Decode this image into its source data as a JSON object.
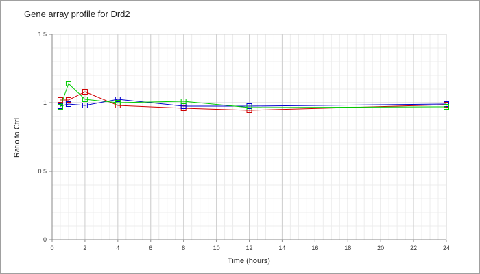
{
  "chart_data": {
    "type": "line",
    "title": "Gene array profile for Drd2",
    "xlabel": "Time (hours)",
    "ylabel": "Ratio to Ctrl",
    "xlim": [
      0,
      24
    ],
    "ylim": [
      0,
      1.5
    ],
    "x_ticks": [
      "0",
      "2",
      "4",
      "6",
      "8",
      "10",
      "12",
      "14",
      "16",
      "18",
      "20",
      "22",
      "24"
    ],
    "y_ticks": [
      "0",
      "0.5",
      "1",
      "1.5"
    ],
    "grid": true,
    "marker": "square",
    "series": [
      {
        "color": "#d00000",
        "points": [
          {
            "x": 0.5,
            "y": 1.02
          },
          {
            "x": 1,
            "y": 1.02
          },
          {
            "x": 2,
            "y": 1.08
          },
          {
            "x": 4,
            "y": 0.98
          },
          {
            "x": 8,
            "y": 0.96
          },
          {
            "x": 12,
            "y": 0.945
          },
          {
            "x": 24,
            "y": 0.985
          }
        ]
      },
      {
        "color": "#0000cc",
        "points": [
          {
            "x": 0.5,
            "y": 0.975
          },
          {
            "x": 1,
            "y": 0.99
          },
          {
            "x": 2,
            "y": 0.98
          },
          {
            "x": 4,
            "y": 1.025
          },
          {
            "x": 8,
            "y": 0.975
          },
          {
            "x": 12,
            "y": 0.975
          },
          {
            "x": 24,
            "y": 0.99
          }
        ]
      },
      {
        "color": "#00cc00",
        "points": [
          {
            "x": 0.5,
            "y": 0.97
          },
          {
            "x": 1,
            "y": 1.14
          },
          {
            "x": 2,
            "y": 1.025
          },
          {
            "x": 4,
            "y": 1.0
          },
          {
            "x": 8,
            "y": 1.01
          },
          {
            "x": 12,
            "y": 0.965
          },
          {
            "x": 24,
            "y": 0.97
          }
        ]
      }
    ]
  }
}
